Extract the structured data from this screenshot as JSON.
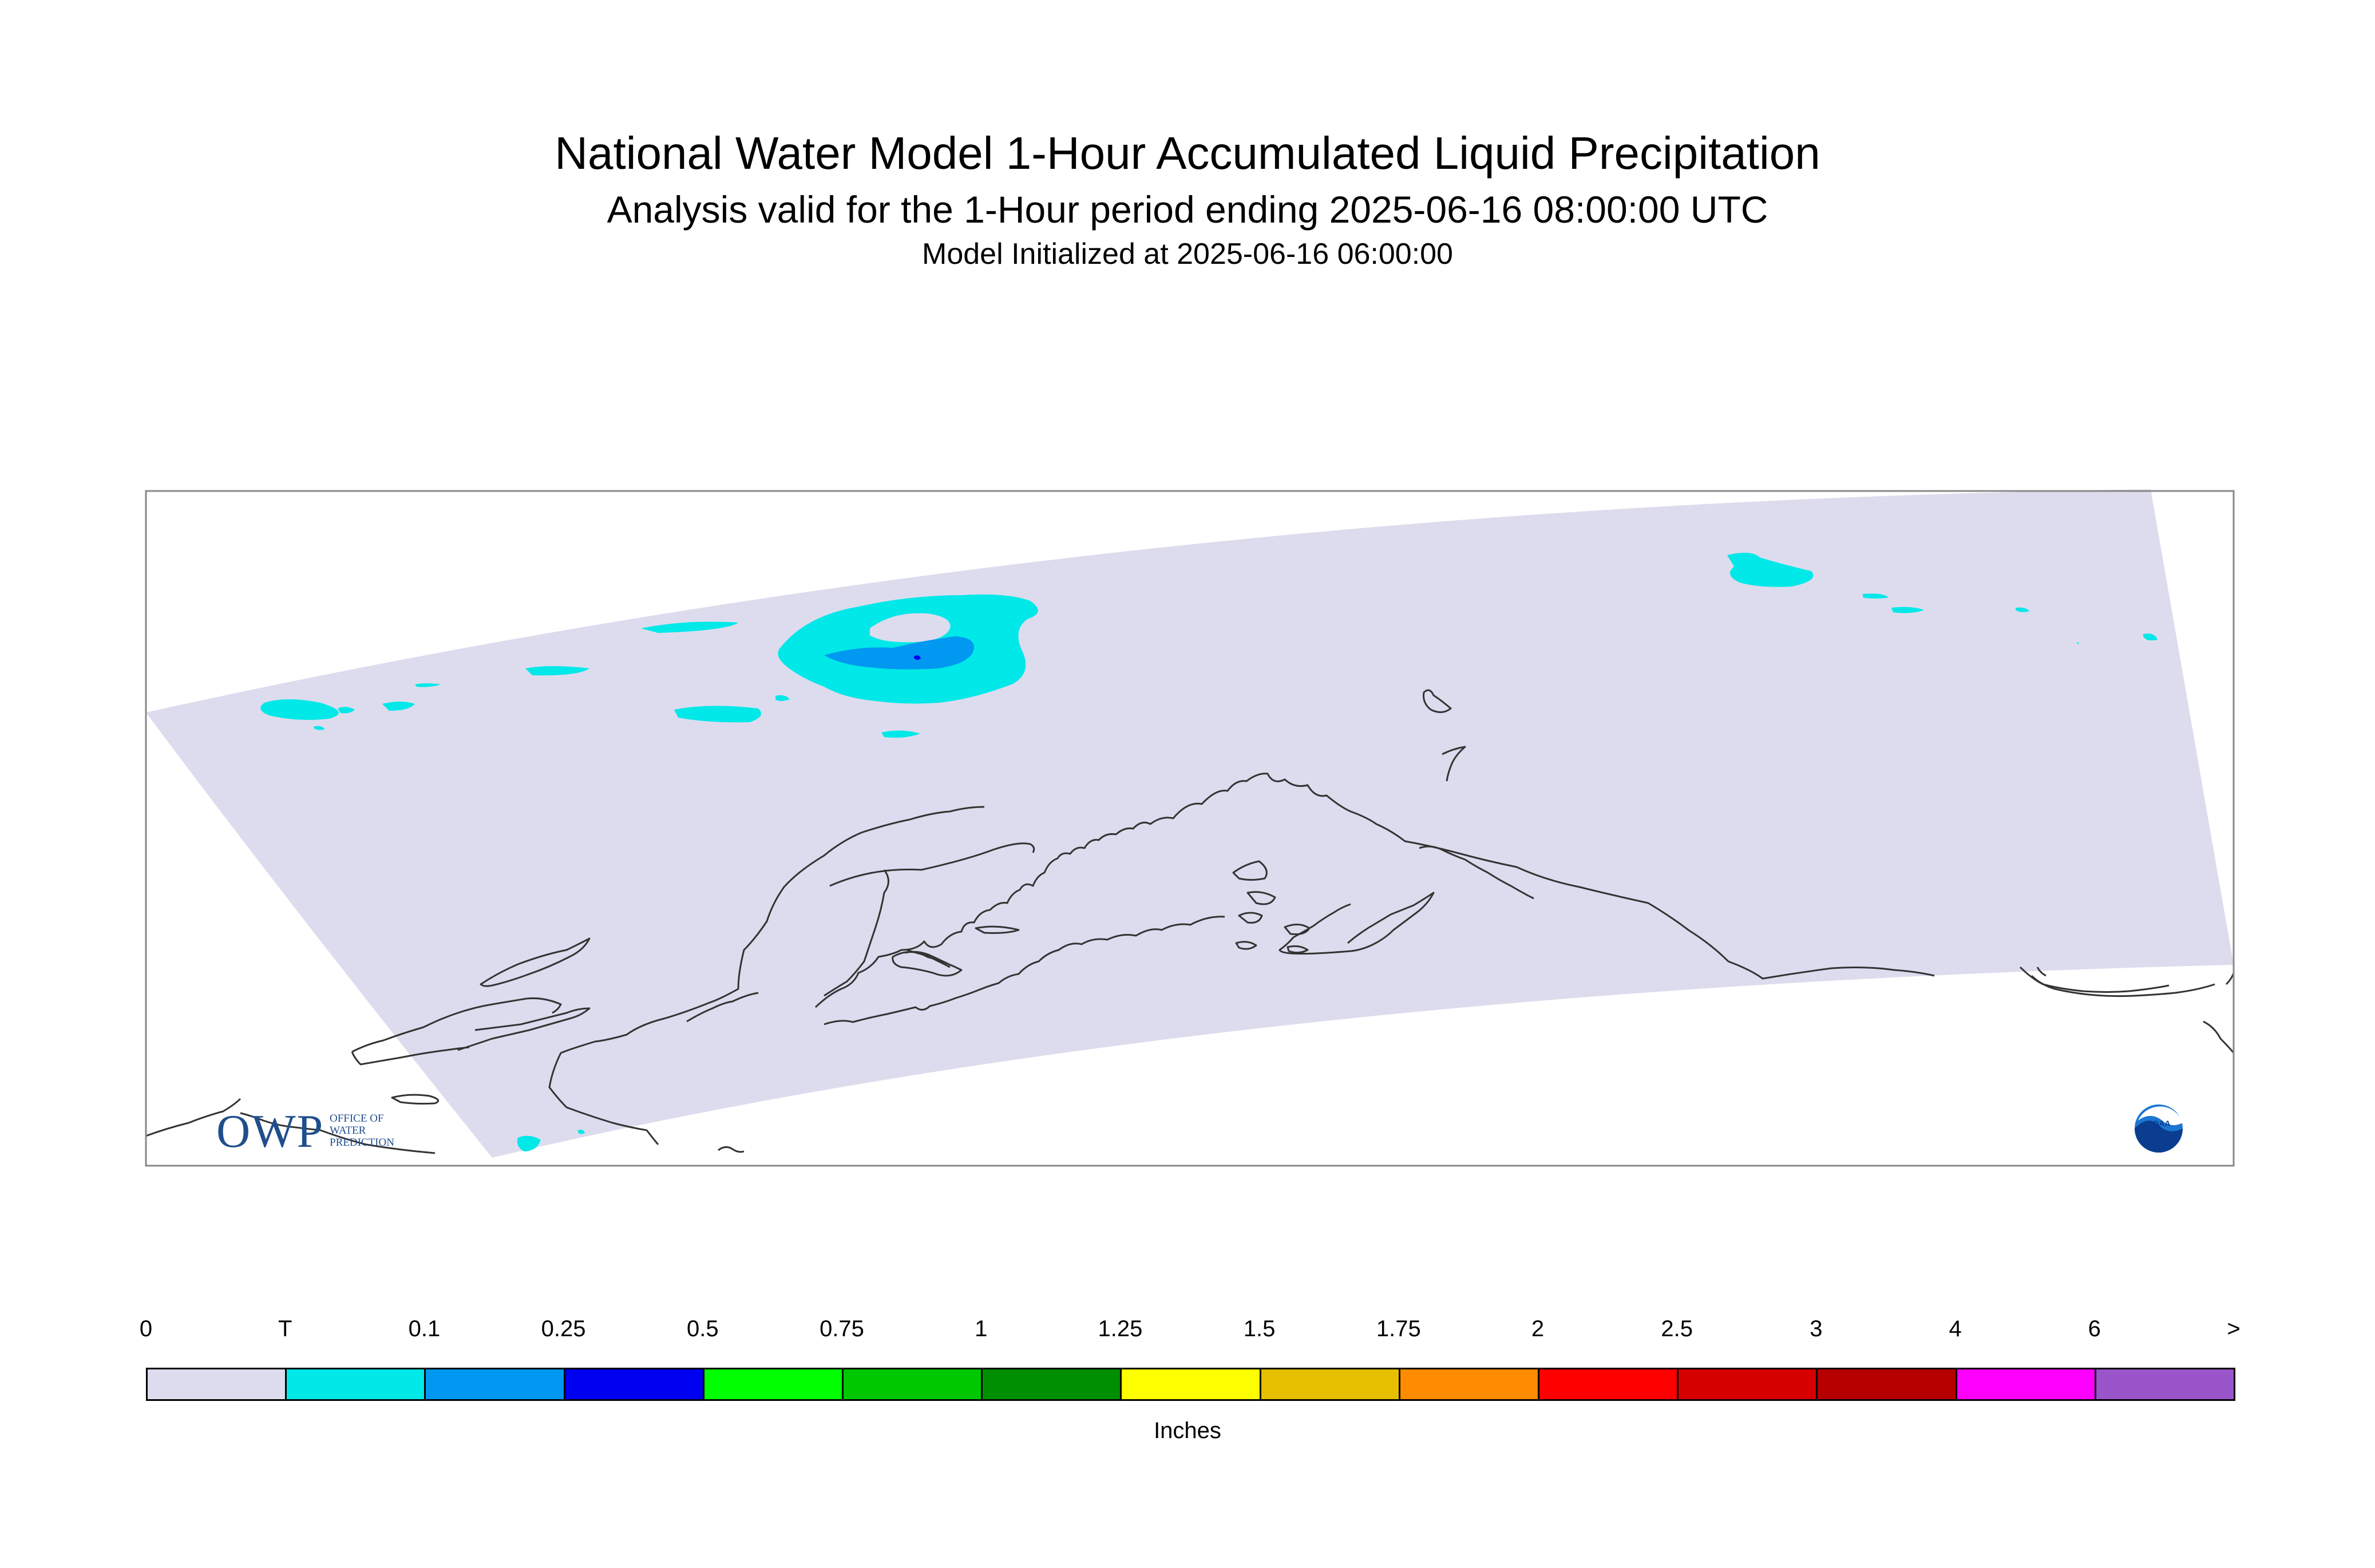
{
  "header": {
    "title": "National Water Model 1-Hour Accumulated Liquid Precipitation",
    "subtitle": "Analysis valid for the 1-Hour period ending 2025-06-16 08:00:00 UTC",
    "init": "Model Initialized at 2025-06-16 06:00:00"
  },
  "logos": {
    "owp_letters": "OWP",
    "owp_text": "OFFICE OF WATER PREDICTION",
    "noaa_text": "NOAA"
  },
  "colorbar": {
    "labels": [
      "0",
      "T",
      "0.1",
      "0.25",
      "0.5",
      "0.75",
      "1",
      "1.25",
      "1.5",
      "1.75",
      "2",
      "2.5",
      "3",
      "4",
      "6",
      ">"
    ],
    "colors": [
      "#dcdcee",
      "#00e8e8",
      "#0098f0",
      "#0000f0",
      "#00ff00",
      "#00c800",
      "#008f00",
      "#ffff00",
      "#e6c000",
      "#ff8c00",
      "#ff0000",
      "#d60000",
      "#b60000",
      "#ff00ff",
      "#9955c9"
    ],
    "units": "Inches"
  },
  "map_colors": {
    "domain": "#dcdcee",
    "trace": "#00e8e8",
    "light": "#0098f0",
    "heavy": "#0000f0",
    "coast": "#333333"
  }
}
